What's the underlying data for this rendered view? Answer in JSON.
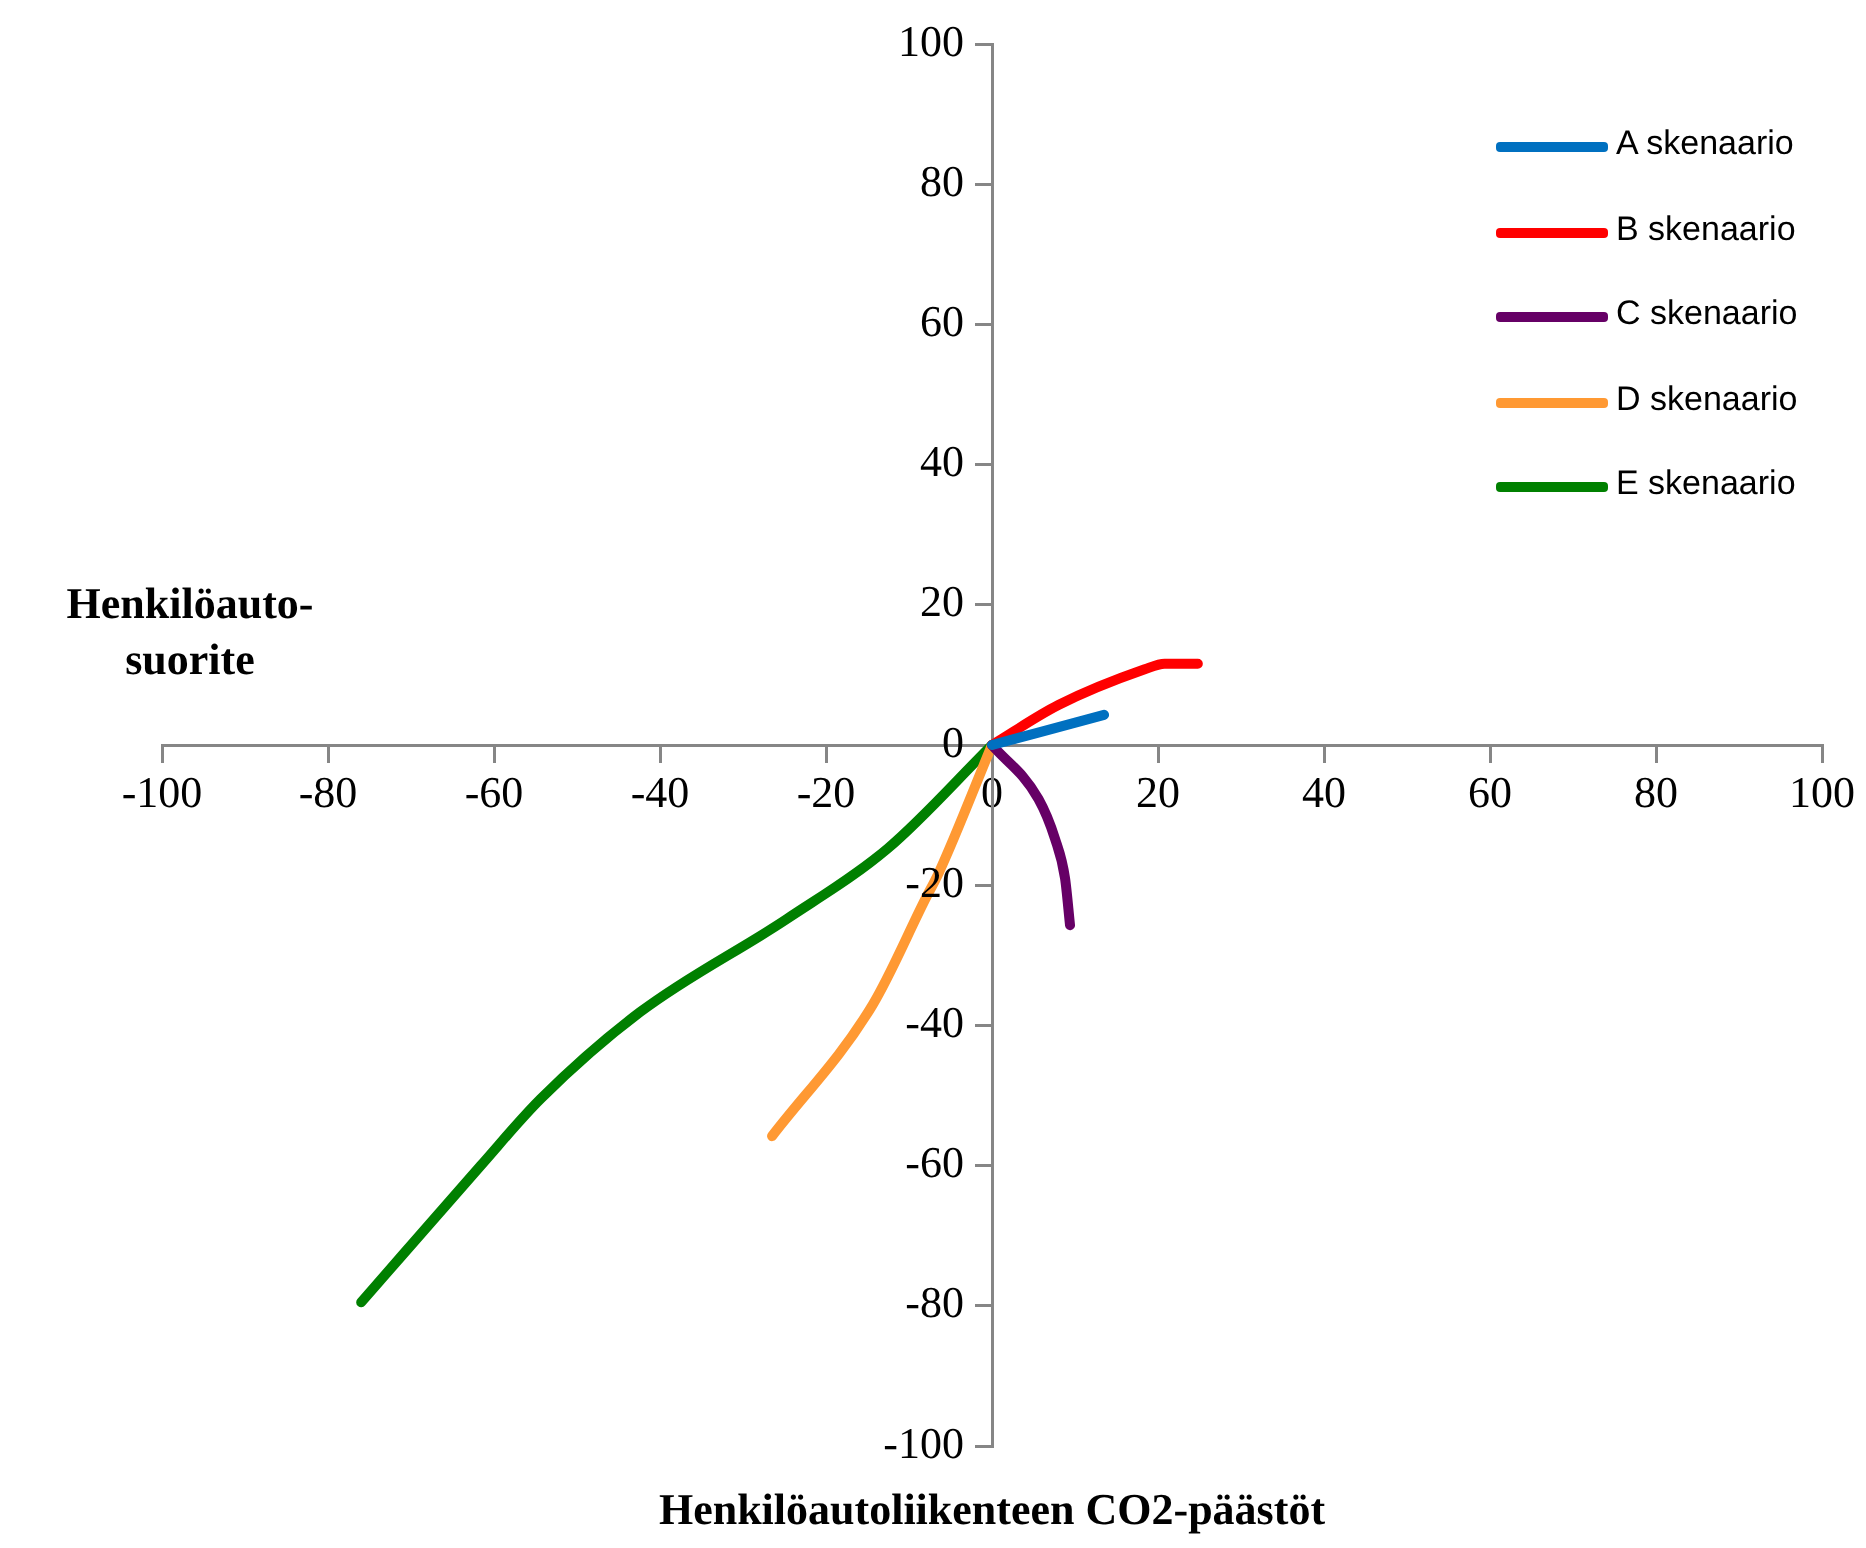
{
  "chart_data": {
    "type": "line",
    "xlabel": "Henkilöautoliikenteen CO2-päästöt",
    "ylabel": "Henkilöauto-\nsuorite",
    "xlim": [
      -100,
      100
    ],
    "ylim": [
      -100,
      100
    ],
    "xticks": [
      -100,
      -80,
      -60,
      -40,
      -20,
      0,
      20,
      40,
      60,
      80,
      100
    ],
    "yticks": [
      -100,
      -80,
      -60,
      -40,
      -20,
      0,
      20,
      40,
      60,
      80,
      100
    ],
    "grid": false,
    "legend": "top right",
    "marker": "none",
    "line_style": "solid",
    "series": [
      {
        "name": "A skenaario",
        "color": "#0070c0",
        "x": [
          0,
          13.5
        ],
        "values": [
          0,
          4.3
        ]
      },
      {
        "name": "B skenaario",
        "color": "#ff0000",
        "x": [
          0,
          8,
          18.4,
          20.8,
          24.8
        ],
        "values": [
          0,
          5.7,
          10.8,
          11.6,
          11.6
        ]
      },
      {
        "name": "C skenaario",
        "color": "#660066",
        "x": [
          0,
          5.6,
          7.6,
          8.8,
          9.4
        ],
        "values": [
          0,
          -7.7,
          -13.4,
          -19,
          -25.7
        ]
      },
      {
        "name": "D skenaario",
        "color": "#ff9933",
        "x": [
          0,
          -6.4,
          -8,
          -14.4,
          -26.5
        ],
        "values": [
          0,
          -18.2,
          -21.9,
          -37.1,
          -55.8
        ]
      },
      {
        "name": "E skenaario",
        "color": "#008000",
        "x": [
          0,
          -12.6,
          -24.7,
          -42.4,
          -54.4,
          -61.6,
          -76
        ],
        "values": [
          0,
          -14.8,
          -24.8,
          -38.1,
          -50.5,
          -60,
          -79.5
        ]
      }
    ]
  }
}
